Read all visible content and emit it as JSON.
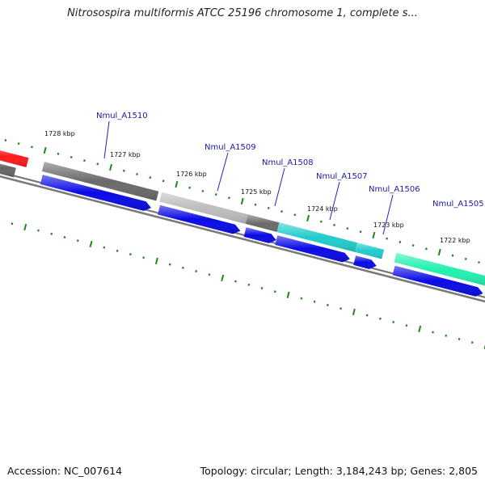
{
  "title": "Nitrosospira multiformis ATCC 25196 chromosome 1, complete s...",
  "footer": {
    "accession": "Accession: NC_007614",
    "summary": "Topology: circular; Length: 3,184,243 bp; Genes: 2,805"
  },
  "colors": {
    "backbone": "#7a7a7a",
    "tick": "#1a8a1a",
    "gene_label": "#1a1aa6",
    "cds": "#0a0ae6"
  },
  "kbp_labels": [
    "1728 kbp",
    "1727 kbp",
    "1726 kbp",
    "1725 kbp",
    "1724 kbp",
    "1723 kbp",
    "1722 kbp"
  ],
  "gene_labels": [
    "Nmul_A1510",
    "Nmul_A1509",
    "Nmul_A1508",
    "Nmul_A1507",
    "Nmul_A1506",
    "Nmul_A1505"
  ],
  "feature_colors": {
    "upper": [
      "#ff1a1a",
      "#6a6a6a",
      "#bdbdbd",
      "#6a6a6a",
      "#22cccc",
      "#22cccc",
      "#22f0b0"
    ],
    "lower": [
      "#666666",
      "#0a0ae6",
      "#0a0ae6",
      "#0a0ae6",
      "#0a0ae6",
      "#0a0ae6",
      "#0a0ae6"
    ]
  }
}
